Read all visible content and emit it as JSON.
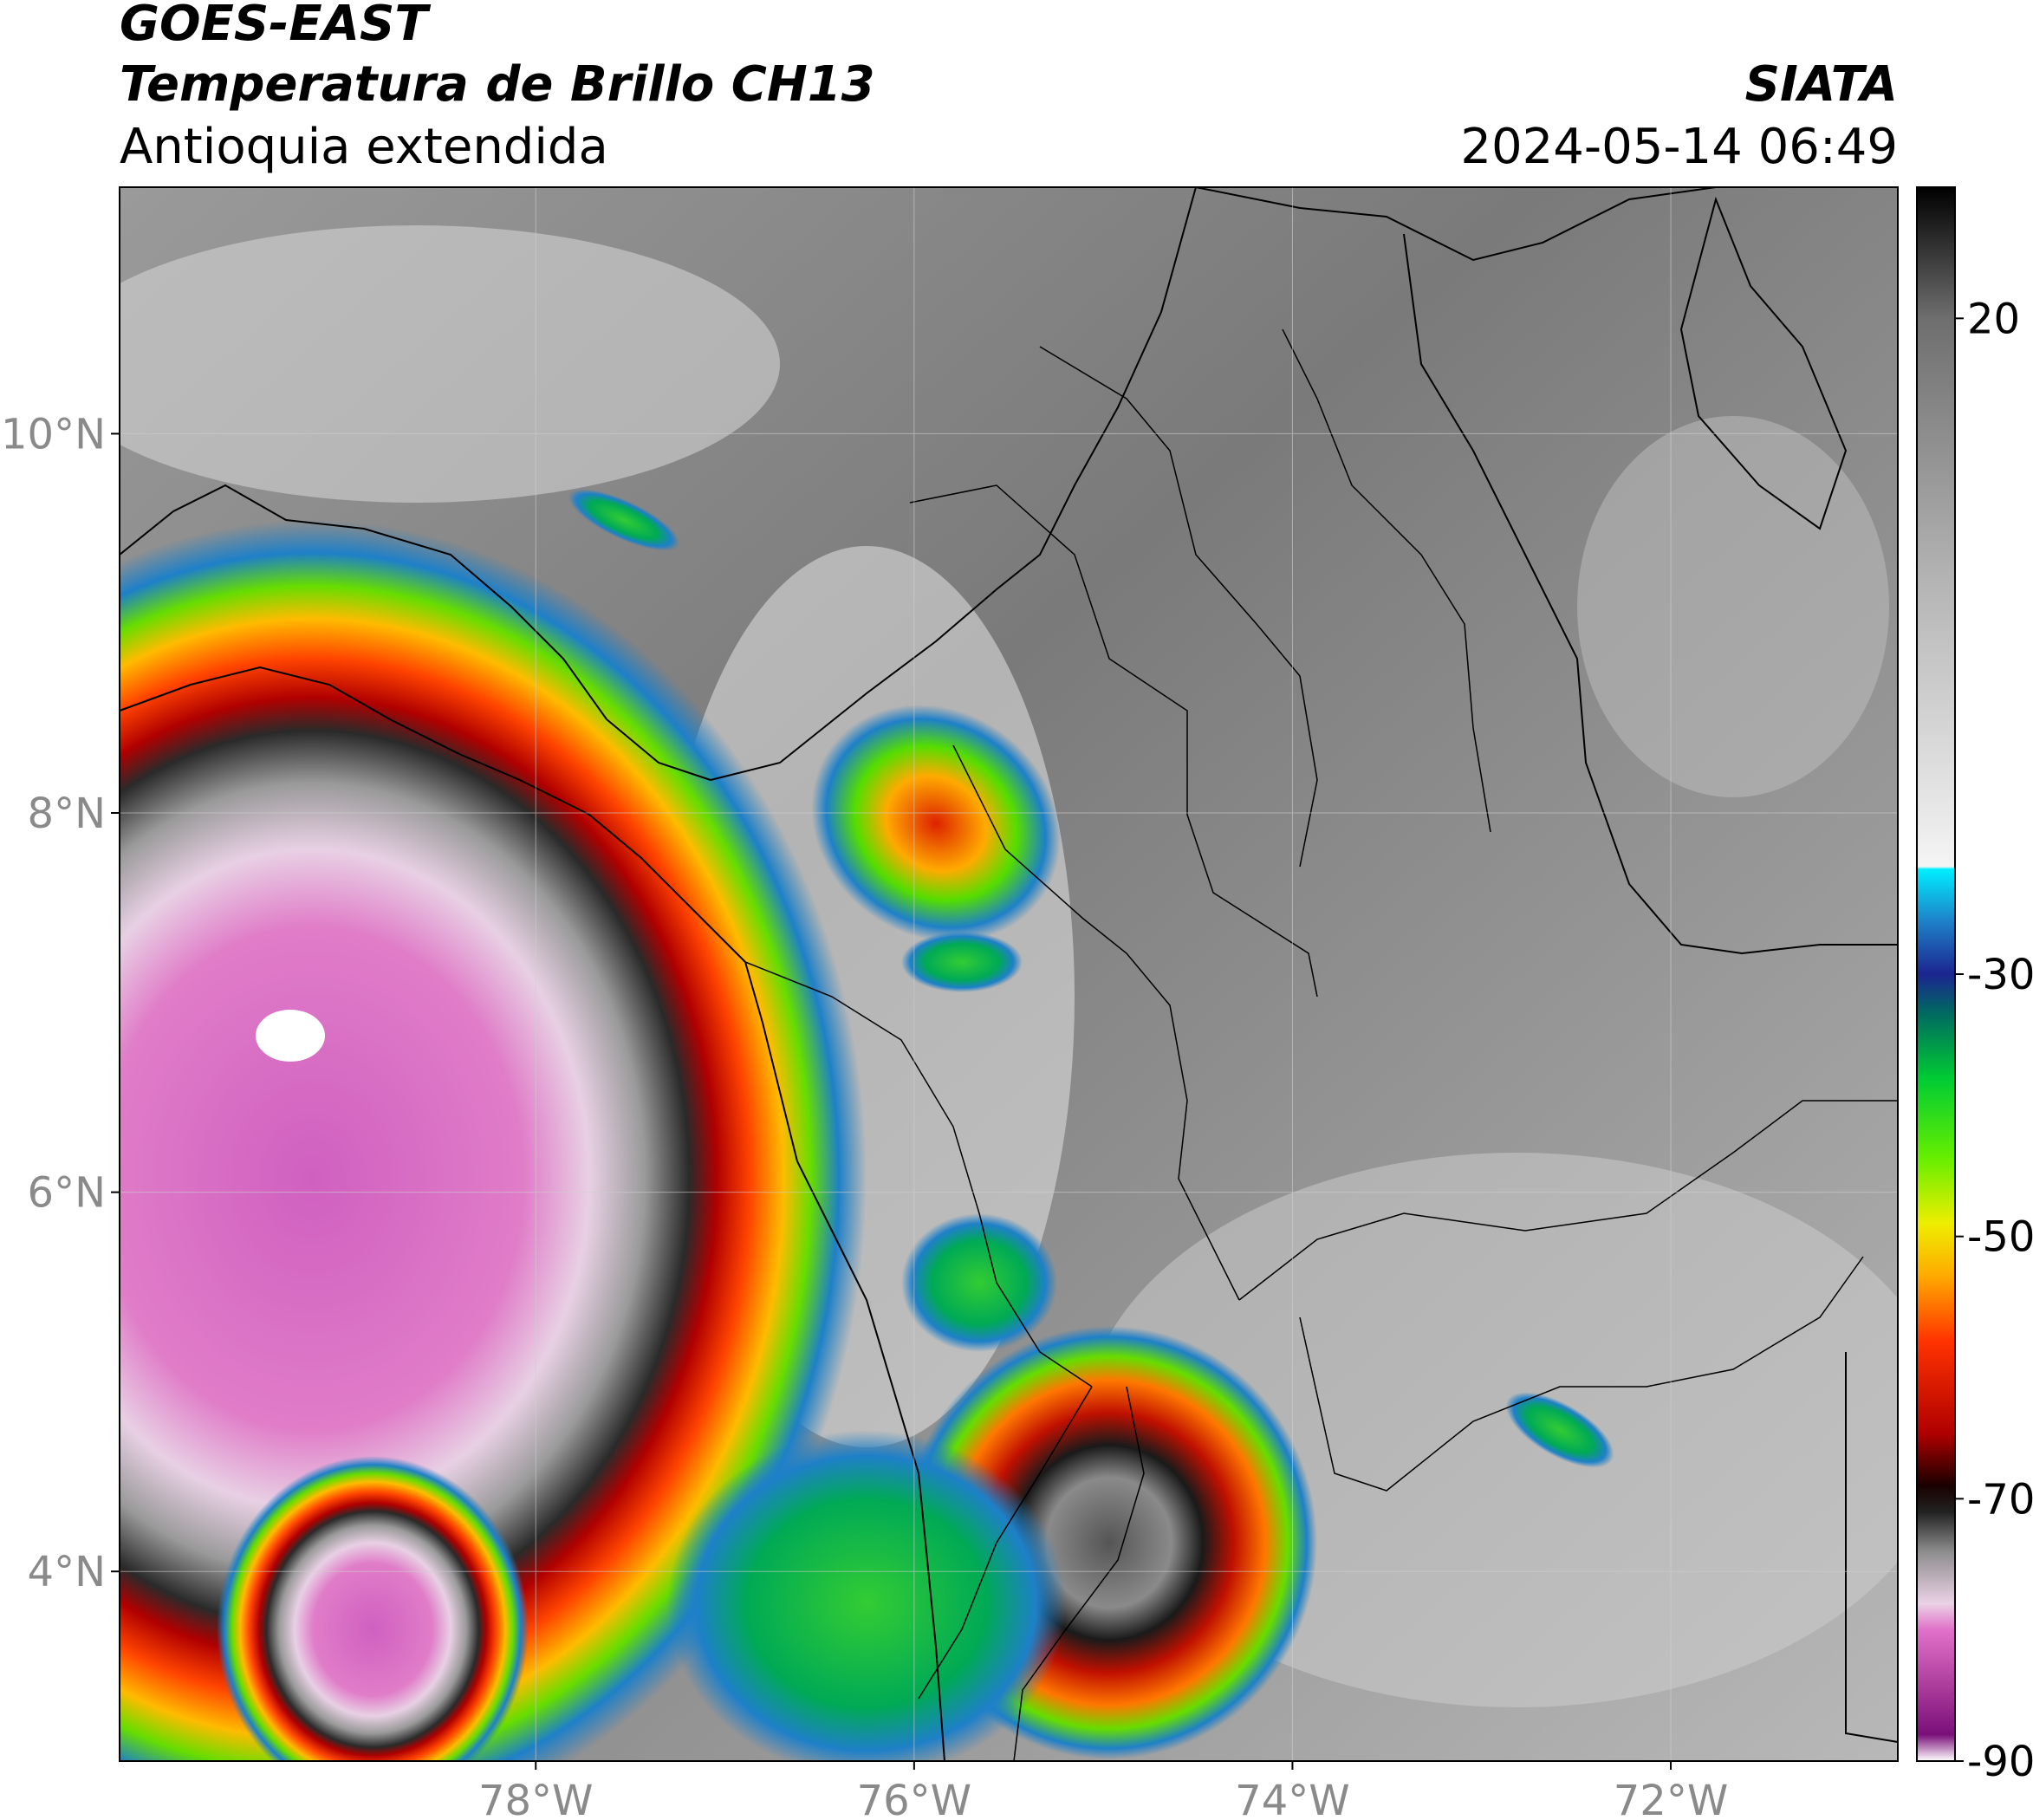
{
  "header": {
    "satellite": "GOES-EAST",
    "product": "Temperatura de Brillo CH13",
    "region": "Antioquia extendida",
    "organization": "SIATA",
    "timestamp": "2024-05-14 06:49"
  },
  "map": {
    "lon_range": [
      -80.2,
      -70.8
    ],
    "lat_range": [
      3.0,
      11.3
    ],
    "lat_ticks": [
      {
        "value": 10,
        "label": "10°N"
      },
      {
        "value": 8,
        "label": "8°N"
      },
      {
        "value": 6,
        "label": "6°N"
      },
      {
        "value": 4,
        "label": "4°N"
      }
    ],
    "lon_ticks": [
      {
        "value": -78,
        "label": "78°W"
      },
      {
        "value": -76,
        "label": "76°W"
      },
      {
        "value": -74,
        "label": "74°W"
      },
      {
        "value": -72,
        "label": "72°W"
      }
    ]
  },
  "colorbar": {
    "range": [
      -90,
      30
    ],
    "ticks": [
      {
        "value": 20,
        "label": "20"
      },
      {
        "value": -30,
        "label": "-30"
      },
      {
        "value": -50,
        "label": "-50"
      },
      {
        "value": -70,
        "label": "-70"
      },
      {
        "value": -90,
        "label": "-90"
      }
    ],
    "stops": [
      {
        "value": -90,
        "color": "#ffffff"
      },
      {
        "value": -88,
        "color": "#7a0f7a"
      },
      {
        "value": -84,
        "color": "#b0409e"
      },
      {
        "value": -80,
        "color": "#e070c8"
      },
      {
        "value": -78,
        "color": "#ebd2e6"
      },
      {
        "value": -74,
        "color": "#8c8c8c"
      },
      {
        "value": -71,
        "color": "#222222"
      },
      {
        "value": -69,
        "color": "#1a0000"
      },
      {
        "value": -65,
        "color": "#b00000"
      },
      {
        "value": -58,
        "color": "#ff3300"
      },
      {
        "value": -53,
        "color": "#ffaa00"
      },
      {
        "value": -49,
        "color": "#eeee00"
      },
      {
        "value": -44,
        "color": "#66ee00"
      },
      {
        "value": -38,
        "color": "#00cc33"
      },
      {
        "value": -33,
        "color": "#006a60"
      },
      {
        "value": -30,
        "color": "#1b2590"
      },
      {
        "value": -26,
        "color": "#1e80c8"
      },
      {
        "value": -22,
        "color": "#00eeff"
      },
      {
        "value": -21.8,
        "color": "#f4f4f4"
      },
      {
        "value": 0,
        "color": "#b4b4b4"
      },
      {
        "value": 20,
        "color": "#6e6e6e"
      },
      {
        "value": 30,
        "color": "#000000"
      }
    ]
  }
}
